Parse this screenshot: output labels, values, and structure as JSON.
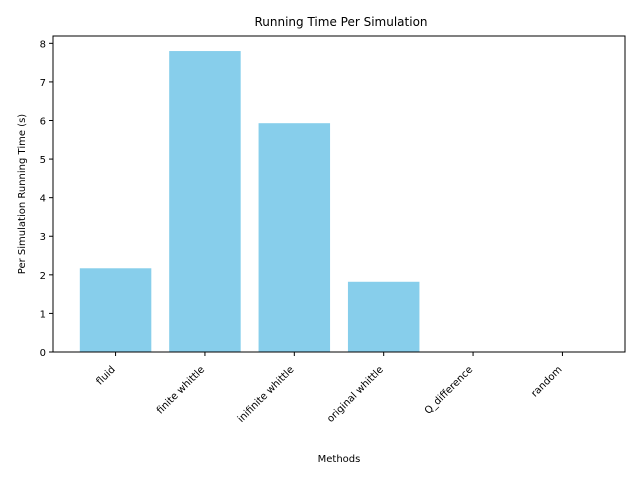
{
  "chart_data": {
    "type": "bar",
    "title": "Running Time Per Simulation",
    "xlabel": "Methods",
    "ylabel": "Per Simulation Running Time (s)",
    "categories": [
      "fluid",
      "finite whittle",
      "inifinite whittle",
      "original whittle",
      "Q_difference",
      "random"
    ],
    "values": [
      2.17,
      7.8,
      5.93,
      1.82,
      0.0,
      0.0
    ],
    "ylim": [
      0,
      8.19
    ],
    "yticks": [
      0,
      1,
      2,
      3,
      4,
      5,
      6,
      7,
      8
    ],
    "bar_color": "#87ceeb",
    "grid": false,
    "legend": "none"
  }
}
